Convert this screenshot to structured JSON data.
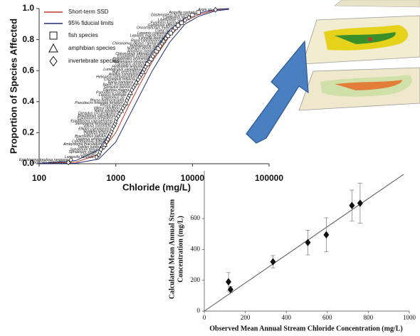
{
  "chart_data": [
    {
      "type": "ssd",
      "x_label": "Chloride (mg/L)",
      "y_label": "Proportion of Species Affected",
      "log_x": true,
      "xlim": [
        100,
        100000
      ],
      "xticks": [
        100,
        1000,
        10000,
        100000
      ],
      "ylim": [
        0,
        1
      ],
      "yticks": [
        {
          "value": 0,
          "label": "0.0"
        },
        {
          "value": 0.2,
          "label": "0.2"
        },
        {
          "value": 0.4,
          "label": "0.4"
        },
        {
          "value": 0.6,
          "label": "0.6"
        },
        {
          "value": 0.8,
          "label": "0.8"
        },
        {
          "value": 1,
          "label": "1.0"
        }
      ],
      "lines": [
        {
          "name": "Short-term SSD",
          "color": "#c0392b",
          "x": [
            100,
            300,
            600,
            1000,
            1500,
            2000,
            3000,
            5000,
            8000,
            12000,
            20000,
            30000
          ],
          "values": [
            0,
            0.01,
            0.06,
            0.2,
            0.38,
            0.5,
            0.66,
            0.82,
            0.92,
            0.96,
            0.99,
            1
          ]
        },
        {
          "name": "95% fiducial limits",
          "color": "#1f2a6e",
          "x": [
            100,
            300,
            600,
            1000,
            1500,
            2000,
            3000,
            5000,
            8000,
            12000,
            20000,
            30000
          ],
          "lower": [
            0,
            0.003,
            0.03,
            0.14,
            0.31,
            0.43,
            0.6,
            0.78,
            0.9,
            0.95,
            0.985,
            0.995
          ],
          "upper": [
            0.002,
            0.02,
            0.09,
            0.26,
            0.45,
            0.57,
            0.72,
            0.86,
            0.94,
            0.97,
            0.995,
            1
          ]
        }
      ],
      "groups": [
        {
          "name": "fish species",
          "marker": "square"
        },
        {
          "name": "amphibian species",
          "marker": "triangle"
        },
        {
          "name": "invertebrate species",
          "marker": "diamond"
        }
      ],
      "species": [
        "Lampsilis siliquoidea",
        "Epioblasma torulosa rangiana",
        "Lampsilis fasciola",
        "Lampsilis",
        "Sphaerium simile",
        "Sphaerium tenue",
        "Tubifex tubifex",
        "Ambystoma maculatum",
        "Ceriodaphnia dubia",
        "Daphnia ambigua",
        "Brachionus patulus",
        "Daphnia pulex",
        "Hyalella azteca",
        "Elliptio complanata",
        "Villosa constricta",
        "Stenonema femoratum",
        "Epioblasma capsaeformis",
        "Epioblasma brevidens",
        "Brachionus calyciflorus",
        "Gyraulus circumstriatus",
        "Rana sylvatica",
        "Villosa delumbis",
        "Physa gyrina",
        "Pseudacris triseriata feriarum",
        "Physa heterostropha",
        "Diaptomus sp.",
        "Lirceus fontinalis",
        "Pseudacris crucifer",
        "Daphnia magna",
        "Gyraulus parvus",
        "Baetis tricaudatus",
        "Rana clamitans",
        "Cricotopus trifascia",
        "Helisoma campanulatum",
        "Asellus communis",
        "Bufo americanus",
        "Lumbriculus variegatus",
        "Hydroptila angusta",
        "Carassius auratus",
        "Nephelopsis obscura",
        "Pimephales promelas",
        "Erpobdella punctata",
        "Chironomus attenatus",
        "Ameiurus melas",
        "Notropis lutrensis",
        "Hydropsyche sp.",
        "Chironomus dilutus / tentans",
        "Rana catesbeiana",
        "Lyrinella leedsi",
        "Lepomis macrochirus",
        "Lepomis cyanellus",
        "Culex sp.",
        "Oncorhynchus mykiss",
        "Gambusia affinis",
        "Fundulus kansae",
        "Libellulidae sp.",
        "Cambarus sp.",
        "Gasterosteus aculeatus",
        "Anguilla rostrata",
        "Argia sp."
      ],
      "markers": [
        "diamond",
        "diamond",
        "diamond",
        "diamond",
        "diamond",
        "diamond",
        "diamond",
        "triangle",
        "diamond",
        "diamond",
        "diamond",
        "diamond",
        "diamond",
        "diamond",
        "diamond",
        "diamond",
        "diamond",
        "diamond",
        "diamond",
        "diamond",
        "triangle",
        "diamond",
        "diamond",
        "triangle",
        "diamond",
        "diamond",
        "diamond",
        "triangle",
        "diamond",
        "diamond",
        "diamond",
        "triangle",
        "diamond",
        "diamond",
        "diamond",
        "triangle",
        "diamond",
        "diamond",
        "square",
        "diamond",
        "square",
        "diamond",
        "diamond",
        "square",
        "square",
        "diamond",
        "diamond",
        "triangle",
        "diamond",
        "square",
        "square",
        "diamond",
        "square",
        "square",
        "square",
        "diamond",
        "diamond",
        "square",
        "square",
        "diamond"
      ],
      "concentrations": [
        240,
        260,
        560,
        600,
        620,
        640,
        700,
        720,
        760,
        790,
        820,
        850,
        880,
        900,
        940,
        980,
        1000,
        1020,
        1080,
        1120,
        1180,
        1240,
        1300,
        1350,
        1400,
        1450,
        1500,
        1550,
        1620,
        1700,
        1780,
        1850,
        1950,
        2050,
        2150,
        2250,
        2350,
        2450,
        2600,
        2750,
        2900,
        3050,
        3200,
        3400,
        3600,
        3800,
        4000,
        4200,
        4500,
        4800,
        5200,
        5600,
        6000,
        6500,
        7200,
        8000,
        9000,
        10000,
        12000,
        20000
      ],
      "proportions": [
        0.008,
        0.025,
        0.042,
        0.058,
        0.075,
        0.092,
        0.108,
        0.125,
        0.142,
        0.158,
        0.175,
        0.192,
        0.208,
        0.225,
        0.242,
        0.258,
        0.275,
        0.292,
        0.308,
        0.325,
        0.342,
        0.358,
        0.375,
        0.392,
        0.408,
        0.425,
        0.442,
        0.458,
        0.475,
        0.492,
        0.508,
        0.525,
        0.542,
        0.558,
        0.575,
        0.592,
        0.608,
        0.625,
        0.642,
        0.658,
        0.675,
        0.692,
        0.708,
        0.725,
        0.742,
        0.758,
        0.775,
        0.792,
        0.808,
        0.825,
        0.842,
        0.858,
        0.875,
        0.892,
        0.908,
        0.925,
        0.942,
        0.958,
        0.975,
        0.992
      ]
    },
    {
      "type": "scatter",
      "x_label": "Observed Mean Annual Stream Chloride Concentration (mg/L)",
      "y_label": [
        "Calculated Mean Annual Stream",
        "Concentration (mg/L)"
      ],
      "xlim": [
        0,
        1000
      ],
      "xticks": [
        0,
        200,
        400,
        600,
        800,
        1000
      ],
      "ylim": [
        0,
        910
      ],
      "yticks": [
        0,
        200,
        400,
        600
      ],
      "color": "#111111",
      "x": [
        118,
        128,
        335,
        505,
        595,
        720,
        760
      ],
      "values": [
        190,
        140,
        320,
        445,
        495,
        685,
        700
      ],
      "errors": [
        60,
        20,
        40,
        80,
        110,
        100,
        130
      ],
      "line": {
        "x": [
          0,
          972
        ],
        "values": [
          0,
          887
        ]
      }
    }
  ]
}
